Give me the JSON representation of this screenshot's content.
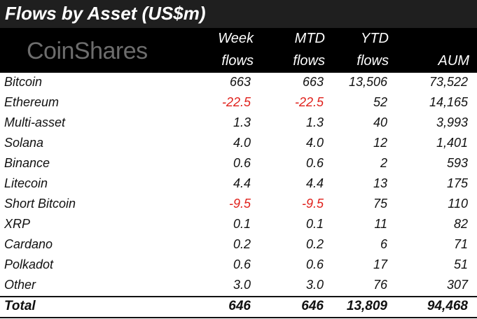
{
  "title": "Flows by Asset (US$m)",
  "logo_text": "CoinShares",
  "chart_data": {
    "type": "table",
    "title": "Flows by Asset (US$m)",
    "columns": [
      {
        "line1": "Week",
        "line2": "flows"
      },
      {
        "line1": "MTD",
        "line2": "flows"
      },
      {
        "line1": "YTD",
        "line2": "flows"
      },
      {
        "line1": "",
        "line2": "AUM"
      }
    ],
    "rows": [
      {
        "name": "Bitcoin",
        "week": "663",
        "mtd": "663",
        "ytd": "13,506",
        "aum": "73,522"
      },
      {
        "name": "Ethereum",
        "week": "-22.5",
        "mtd": "-22.5",
        "ytd": "52",
        "aum": "14,165"
      },
      {
        "name": "Multi-asset",
        "week": "1.3",
        "mtd": "1.3",
        "ytd": "40",
        "aum": "3,993"
      },
      {
        "name": "Solana",
        "week": "4.0",
        "mtd": "4.0",
        "ytd": "12",
        "aum": "1,401"
      },
      {
        "name": "Binance",
        "week": "0.6",
        "mtd": "0.6",
        "ytd": "2",
        "aum": "593"
      },
      {
        "name": "Litecoin",
        "week": "4.4",
        "mtd": "4.4",
        "ytd": "13",
        "aum": "175"
      },
      {
        "name": "Short Bitcoin",
        "week": "-9.5",
        "mtd": "-9.5",
        "ytd": "75",
        "aum": "110"
      },
      {
        "name": "XRP",
        "week": "0.1",
        "mtd": "0.1",
        "ytd": "11",
        "aum": "82"
      },
      {
        "name": "Cardano",
        "week": "0.2",
        "mtd": "0.2",
        "ytd": "6",
        "aum": "71"
      },
      {
        "name": "Polkadot",
        "week": "0.6",
        "mtd": "0.6",
        "ytd": "17",
        "aum": "51"
      },
      {
        "name": "Other",
        "week": "3.0",
        "mtd": "3.0",
        "ytd": "76",
        "aum": "307"
      }
    ],
    "total": {
      "name": "Total",
      "week": "646",
      "mtd": "646",
      "ytd": "13,809",
      "aum": "94,468"
    },
    "negative_color": "#e0201b"
  }
}
